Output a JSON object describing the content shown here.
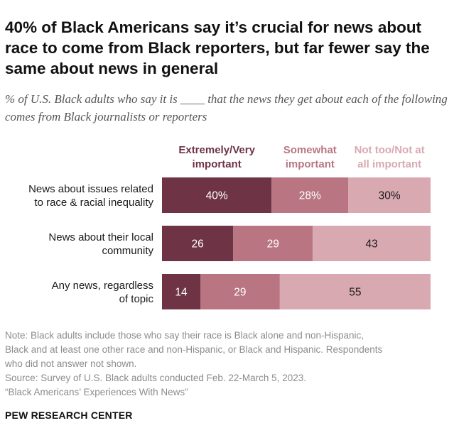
{
  "title": "40% of Black Americans say it’s crucial for news about race to come from Black reporters, but far fewer say the same about news in general",
  "subtitle": "% of U.S. Black adults who say it is ____ that the news they get about each of the following comes from Black journalists or reporters",
  "chart_data": {
    "type": "bar",
    "orientation": "horizontal-stacked-100",
    "categories": [
      [
        "News about issues related",
        "to race & racial inequality"
      ],
      [
        "News about their local",
        "community"
      ],
      [
        "Any news, regardless",
        "of topic"
      ]
    ],
    "series": [
      {
        "name": [
          "Extremely/Very",
          "important"
        ],
        "values": [
          40,
          26,
          14
        ],
        "labels": [
          "40%",
          "26",
          "14"
        ],
        "color": "#6e3344",
        "label_color": "#ffffff"
      },
      {
        "name": [
          "Somewhat",
          "important"
        ],
        "values": [
          28,
          29,
          29
        ],
        "labels": [
          "28%",
          "29",
          "29"
        ],
        "color": "#b97682",
        "label_color": "#ffffff"
      },
      {
        "name": [
          "Not too/Not at",
          "all important"
        ],
        "values": [
          30,
          43,
          55
        ],
        "labels": [
          "30%",
          "43",
          "55"
        ],
        "color": "#d9a9b2",
        "label_color": "#1a1a1a"
      }
    ],
    "legend_text_colors": [
      "#6e3344",
      "#b97682",
      "#d9a9b2"
    ],
    "xlim": [
      0,
      100
    ],
    "legend_placement": "top",
    "grid": false
  },
  "notes": [
    "Note: Black adults include those who say their race is Black alone and non-Hispanic,",
    "Black and at least one other race and non-Hispanic, or Black and Hispanic. Respondents",
    "who did not answer not shown.",
    "Source: Survey of U.S. Black adults conducted Feb. 22-March 5, 2023.",
    "“Black Americans’ Experiences With News”"
  ],
  "footer": "PEW RESEARCH CENTER"
}
